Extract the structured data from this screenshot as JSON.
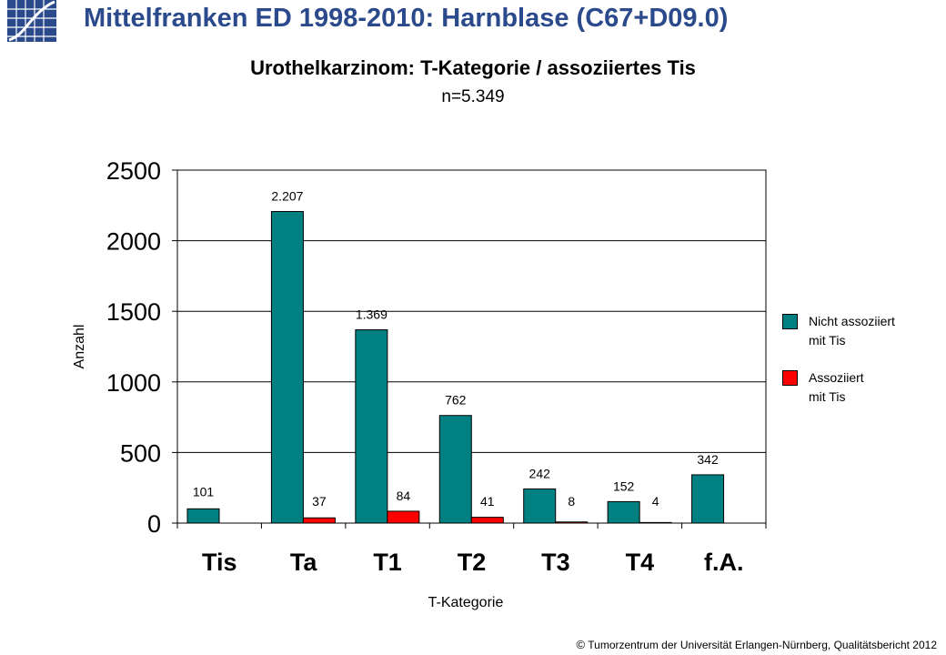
{
  "header": {
    "title": "Mittelfranken ED 1998-2010: Harnblase  (C67+D09.0)"
  },
  "chart_data": {
    "type": "bar",
    "title": "Urothelkarzinom: T-Kategorie / assoziiertes Tis",
    "subtitle": "n=5.349",
    "xlabel": "T-Kategorie",
    "ylabel": "Anzahl",
    "ylim": [
      0,
      2500
    ],
    "yticks": [
      0,
      500,
      1000,
      1500,
      2000,
      2500
    ],
    "grid": true,
    "legend_position": "right",
    "categories": [
      "Tis",
      "Ta",
      "T1",
      "T2",
      "T3",
      "T4",
      "f.A."
    ],
    "series": [
      {
        "name": "Nicht assoziiert\nmit Tis",
        "color": "#008080",
        "values": [
          101,
          2207,
          1369,
          762,
          242,
          152,
          342
        ],
        "labels": [
          "101",
          "2.207",
          "1.369",
          "762",
          "242",
          "152",
          "342"
        ]
      },
      {
        "name": "Assoziiert\nmit Tis",
        "color": "#ff0000",
        "values": [
          null,
          37,
          84,
          41,
          8,
          4,
          null
        ],
        "labels": [
          "",
          "37",
          "84",
          "41",
          "8",
          "4",
          ""
        ]
      }
    ]
  },
  "footer": {
    "copyright_symbol": "©",
    "text": "Tumorzentrum  der Universität Erlangen-Nürnberg,  Qualitätsbericht 2012"
  },
  "colors": {
    "header_title": "#2b4a8c",
    "grid": "#000000"
  },
  "logo_icon": "tumorzentrum-logo-icon"
}
